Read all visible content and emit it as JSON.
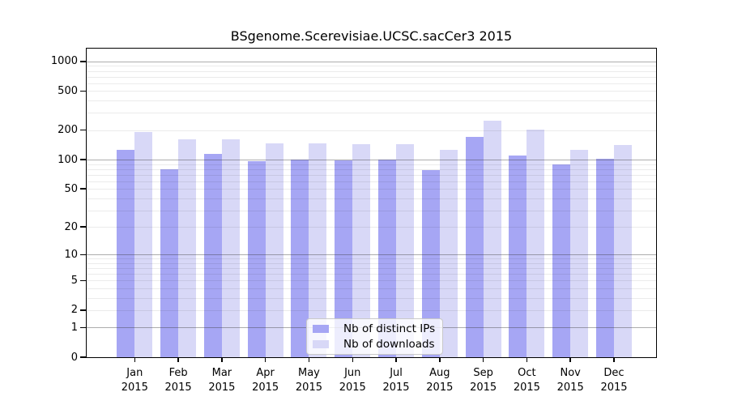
{
  "chart_data": {
    "type": "bar",
    "title": "BSgenome.Scerevisiae.UCSC.sacCer3 2015",
    "categories": [
      "Jan",
      "Feb",
      "Mar",
      "Apr",
      "May",
      "Jun",
      "Jul",
      "Aug",
      "Sep",
      "Oct",
      "Nov",
      "Dec"
    ],
    "x_tick_year": "2015",
    "series": [
      {
        "name": "Nb of distinct IPs",
        "color": "#a6a6f4",
        "values": [
          127,
          80,
          114,
          96,
          100,
          98,
          100,
          78,
          171,
          110,
          89,
          102
        ]
      },
      {
        "name": "Nb of downloads",
        "color": "#d8d8f7",
        "values": [
          193,
          162,
          160,
          147,
          147,
          143,
          145,
          126,
          248,
          202,
          126,
          142
        ]
      }
    ],
    "y_axis": {
      "scale": "log1p",
      "ticks": [
        0,
        1,
        2,
        5,
        10,
        20,
        50,
        100,
        200,
        500,
        1000
      ],
      "max": 1350
    },
    "grid": {
      "decade_lines": [
        1,
        10,
        100,
        1000
      ],
      "minor_lines": [
        2,
        3,
        4,
        5,
        6,
        7,
        8,
        9,
        20,
        30,
        40,
        50,
        60,
        70,
        80,
        90,
        200,
        300,
        400,
        500,
        600,
        700,
        800,
        900
      ]
    },
    "legend_position": "bottom-center",
    "grid_on": true
  }
}
